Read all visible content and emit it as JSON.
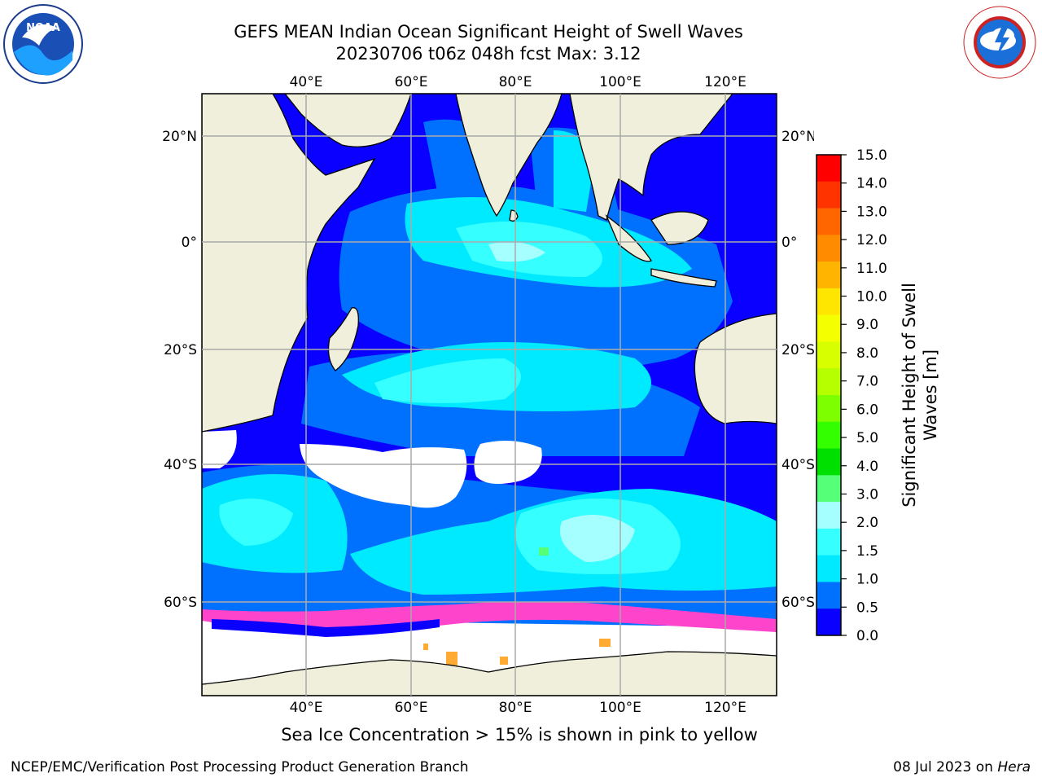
{
  "header": {
    "title_line1": "GEFS MEAN Indian Ocean Significant Height of Swell Waves",
    "title_line2": "20230706 t06z 048h fcst   Max: 3.12"
  },
  "logos": {
    "left": "noaa-logo",
    "right": "nws-logo"
  },
  "map": {
    "lon_labels": [
      "40°E",
      "60°E",
      "80°E",
      "100°E",
      "120°E"
    ],
    "lat_labels": [
      "20°N",
      "0°",
      "20°S",
      "40°S",
      "60°S"
    ],
    "ocean_colors": [
      "#0a00ff",
      "#0071ff",
      "#00eaff",
      "#35ffff",
      "#a6ffff"
    ],
    "land_color": "#efefdc",
    "ice_colors": [
      "#ff44cc",
      "#ffaa33"
    ]
  },
  "colorbar": {
    "label_line1": "Significant Height of Swell",
    "label_line2": "Waves [m]",
    "ticks": [
      "15.0",
      "14.0",
      "13.0",
      "12.0",
      "11.0",
      "10.0",
      "9.0",
      "8.0",
      "7.0",
      "6.0",
      "5.0",
      "4.0",
      "3.0",
      "2.0",
      "1.5",
      "1.0",
      "0.5",
      "0.0"
    ],
    "colors": [
      "#ff0000",
      "#ff3300",
      "#ff6600",
      "#ff8c00",
      "#ffb400",
      "#ffe600",
      "#f4ff00",
      "#d8ff00",
      "#b6ff00",
      "#7dff00",
      "#33ff00",
      "#00e000",
      "#55ff77",
      "#a6ffff",
      "#35ffff",
      "#00eaff",
      "#0071ff",
      "#0a00ff"
    ]
  },
  "caption": "Sea Ice Concentration > 15% is shown in pink to yellow",
  "footer": {
    "left": "NCEP/EMC/Verification Post Processing Product Generation Branch",
    "right_prefix": "08 Jul 2023 on ",
    "right_machine": "Hera"
  }
}
